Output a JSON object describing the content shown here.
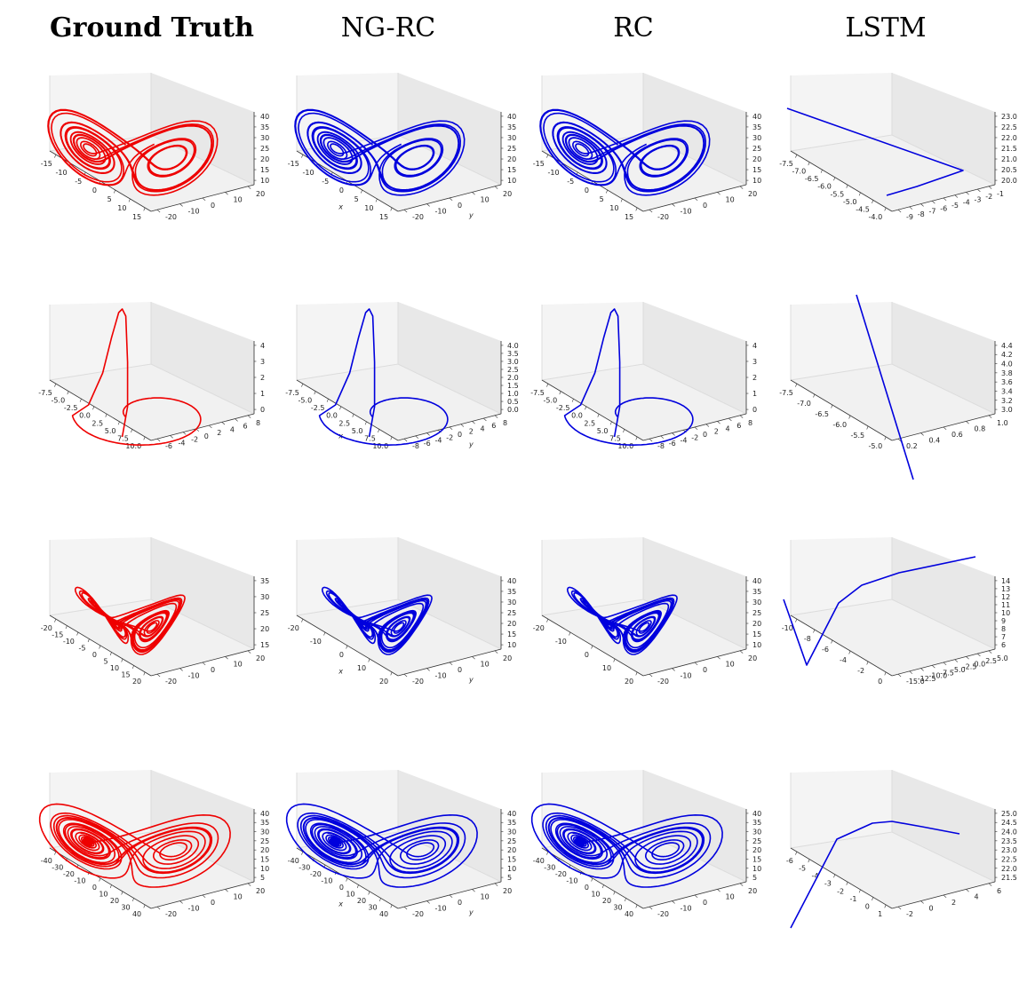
{
  "headers": [
    "Ground Truth",
    "NG-RC",
    "RC",
    "LSTM"
  ],
  "colors": {
    "ground_truth": "#ee0000",
    "prediction": "#0000dd"
  },
  "chart_data": [
    {
      "type": "line3d",
      "row": 0,
      "col": 0,
      "color": "#ee0000",
      "traj": "butterfly",
      "show_axis_labels": false,
      "xticks": [
        "-15",
        "-10",
        "-5",
        "0",
        "5",
        "10",
        "15"
      ],
      "yticks": [
        "-20",
        "-10",
        "0",
        "10",
        "20"
      ],
      "zticks": [
        "10",
        "15",
        "20",
        "25",
        "30",
        "35",
        "40"
      ]
    },
    {
      "type": "line3d",
      "row": 0,
      "col": 1,
      "color": "#0000dd",
      "traj": "butterfly",
      "show_axis_labels": true,
      "xticks": [
        "-15",
        "-10",
        "-5",
        "0",
        "5",
        "10",
        "15"
      ],
      "yticks": [
        "-20",
        "-10",
        "0",
        "10",
        "20"
      ],
      "zticks": [
        "10",
        "15",
        "20",
        "25",
        "30",
        "35",
        "40"
      ]
    },
    {
      "type": "line3d",
      "row": 0,
      "col": 2,
      "color": "#0000dd",
      "traj": "butterfly",
      "show_axis_labels": false,
      "xticks": [
        "-15",
        "-10",
        "-5",
        "0",
        "5",
        "10",
        "15"
      ],
      "yticks": [
        "-20",
        "-10",
        "0",
        "10",
        "20"
      ],
      "zticks": [
        "10",
        "15",
        "20",
        "25",
        "30",
        "35",
        "40"
      ]
    },
    {
      "type": "line3d",
      "row": 0,
      "col": 3,
      "color": "#0000dd",
      "traj": "lstm1",
      "show_axis_labels": false,
      "xticks": [
        "-7.5",
        "-7.0",
        "-6.5",
        "-6.0",
        "-5.5",
        "-5.0",
        "-4.5",
        "-4.0"
      ],
      "yticks": [
        "-9",
        "-8",
        "-7",
        "-6",
        "-5",
        "-4",
        "-3",
        "-2",
        "-1"
      ],
      "zticks": [
        "20.0",
        "20.5",
        "21.0",
        "21.5",
        "22.0",
        "22.5",
        "23.0"
      ]
    },
    {
      "type": "line3d",
      "row": 1,
      "col": 0,
      "color": "#ee0000",
      "traj": "rossler",
      "show_axis_labels": false,
      "xticks": [
        "-7.5",
        "-5.0",
        "-2.5",
        "0.0",
        "2.5",
        "5.0",
        "7.5",
        "10.0"
      ],
      "yticks": [
        "-6",
        "-4",
        "-2",
        "0",
        "2",
        "4",
        "6",
        "8"
      ],
      "zticks": [
        "0",
        "1",
        "2",
        "3",
        "4"
      ]
    },
    {
      "type": "line3d",
      "row": 1,
      "col": 1,
      "color": "#0000dd",
      "traj": "rossler",
      "show_axis_labels": true,
      "xticks": [
        "-7.5",
        "-5.0",
        "-2.5",
        "0.0",
        "2.5",
        "5.0",
        "7.5",
        "10.0"
      ],
      "yticks": [
        "-8",
        "-6",
        "-4",
        "-2",
        "0",
        "2",
        "4",
        "6",
        "8"
      ],
      "zticks": [
        "0.0",
        "0.5",
        "1.0",
        "1.5",
        "2.0",
        "2.5",
        "3.0",
        "3.5",
        "4.0"
      ]
    },
    {
      "type": "line3d",
      "row": 1,
      "col": 2,
      "color": "#0000dd",
      "traj": "rossler",
      "show_axis_labels": false,
      "xticks": [
        "-7.5",
        "-5.0",
        "-2.5",
        "0.0",
        "2.5",
        "5.0",
        "7.5",
        "10.0"
      ],
      "yticks": [
        "-8",
        "-6",
        "-4",
        "-2",
        "0",
        "2",
        "4",
        "6",
        "8"
      ],
      "zticks": [
        "0",
        "1",
        "2",
        "3",
        "4"
      ]
    },
    {
      "type": "line3d",
      "row": 1,
      "col": 3,
      "color": "#0000dd",
      "traj": "lstm2",
      "show_axis_labels": false,
      "xticks": [
        "-7.5",
        "-7.0",
        "-6.5",
        "-6.0",
        "-5.5",
        "-5.0"
      ],
      "yticks": [
        "0.2",
        "0.4",
        "0.6",
        "0.8",
        "1.0"
      ],
      "zticks": [
        "3.0",
        "3.2",
        "3.4",
        "3.6",
        "3.8",
        "4.0",
        "4.2",
        "4.4"
      ]
    },
    {
      "type": "line3d",
      "row": 2,
      "col": 0,
      "color": "#ee0000",
      "traj": "chaotic",
      "show_axis_labels": false,
      "xticks": [
        "-20",
        "-15",
        "-10",
        "-5",
        "0",
        "5",
        "10",
        "15",
        "20"
      ],
      "yticks": [
        "-20",
        "-10",
        "0",
        "10",
        "20"
      ],
      "zticks": [
        "15",
        "20",
        "25",
        "30",
        "35"
      ]
    },
    {
      "type": "line3d",
      "row": 2,
      "col": 1,
      "color": "#0000dd",
      "traj": "chaotic",
      "show_axis_labels": true,
      "xticks": [
        "-20",
        "-10",
        "0",
        "10",
        "20"
      ],
      "yticks": [
        "-20",
        "-10",
        "0",
        "10",
        "20"
      ],
      "zticks": [
        "10",
        "15",
        "20",
        "25",
        "30",
        "35",
        "40"
      ]
    },
    {
      "type": "line3d",
      "row": 2,
      "col": 2,
      "color": "#0000dd",
      "traj": "chaotic",
      "show_axis_labels": false,
      "xticks": [
        "-20",
        "-10",
        "0",
        "10",
        "20"
      ],
      "yticks": [
        "-20",
        "-10",
        "0",
        "10",
        "20"
      ],
      "zticks": [
        "10",
        "15",
        "20",
        "25",
        "30",
        "35",
        "40"
      ]
    },
    {
      "type": "line3d",
      "row": 2,
      "col": 3,
      "color": "#0000dd",
      "traj": "lstm3",
      "show_axis_labels": false,
      "xticks": [
        "-10",
        "-8",
        "-6",
        "-4",
        "-2",
        "0"
      ],
      "yticks": [
        "-15.0",
        "-12.5",
        "-10.0",
        "-7.5",
        "-5.0",
        "-2.5",
        "0.0",
        "2.5",
        "5.0"
      ],
      "zticks": [
        "6",
        "7",
        "8",
        "9",
        "10",
        "11",
        "12",
        "13",
        "14"
      ]
    },
    {
      "type": "line3d",
      "row": 3,
      "col": 0,
      "color": "#ee0000",
      "traj": "wide",
      "show_axis_labels": false,
      "xticks": [
        "-40",
        "-30",
        "-20",
        "-10",
        "0",
        "10",
        "20",
        "30",
        "40"
      ],
      "yticks": [
        "-20",
        "-10",
        "0",
        "10",
        "20"
      ],
      "zticks": [
        "5",
        "10",
        "15",
        "20",
        "25",
        "30",
        "35",
        "40"
      ]
    },
    {
      "type": "line3d",
      "row": 3,
      "col": 1,
      "color": "#0000dd",
      "traj": "wide",
      "show_axis_labels": true,
      "xticks": [
        "-40",
        "-30",
        "-20",
        "-10",
        "0",
        "10",
        "20",
        "30",
        "40"
      ],
      "yticks": [
        "-20",
        "-10",
        "0",
        "10",
        "20"
      ],
      "zticks": [
        "5",
        "10",
        "15",
        "20",
        "25",
        "30",
        "35",
        "40"
      ]
    },
    {
      "type": "line3d",
      "row": 3,
      "col": 2,
      "color": "#0000dd",
      "traj": "wide",
      "show_axis_labels": false,
      "xticks": [
        "-40",
        "-30",
        "-20",
        "-10",
        "0",
        "10",
        "20",
        "30",
        "40"
      ],
      "yticks": [
        "-20",
        "-10",
        "0",
        "10",
        "20"
      ],
      "zticks": [
        "5",
        "10",
        "15",
        "20",
        "25",
        "30",
        "35",
        "40"
      ]
    },
    {
      "type": "line3d",
      "row": 3,
      "col": 3,
      "color": "#0000dd",
      "traj": "lstm4",
      "show_axis_labels": false,
      "xticks": [
        "-6",
        "-5",
        "-4",
        "-3",
        "-2",
        "-1",
        "0",
        "1"
      ],
      "yticks": [
        "-2",
        "0",
        "2",
        "4",
        "6"
      ],
      "zticks": [
        "21.5",
        "22.0",
        "22.5",
        "23.0",
        "23.5",
        "24.0",
        "24.5",
        "25.0"
      ]
    }
  ]
}
